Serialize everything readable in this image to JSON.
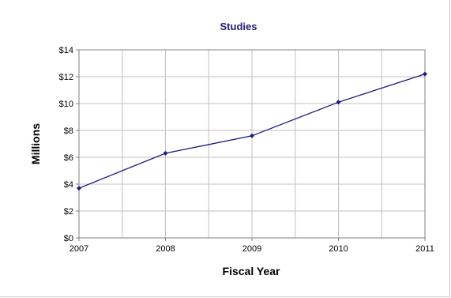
{
  "chart_data": {
    "type": "line",
    "title": "Studies",
    "xlabel": "Fiscal Year",
    "ylabel": "Millions",
    "x": [
      2007,
      2008,
      2009,
      2010,
      2011
    ],
    "x_tick_labels": [
      "2007",
      "2008",
      "2009",
      "2010",
      "2011"
    ],
    "y_tick_values": [
      0,
      2,
      4,
      6,
      8,
      10,
      12,
      14
    ],
    "y_tick_labels": [
      "$0",
      "$2",
      "$4",
      "$6",
      "$8",
      "$10",
      "$12",
      "$14"
    ],
    "ylim": [
      0,
      14
    ],
    "xlim": [
      2007,
      2011
    ],
    "grid": true,
    "legend": false,
    "series": [
      {
        "values": [
          3.7,
          6.3,
          7.6,
          10.1,
          12.2
        ],
        "color": "#1a1a80"
      }
    ]
  }
}
